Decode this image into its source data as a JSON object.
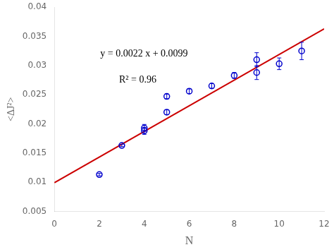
{
  "chart_data": {
    "type": "scatter",
    "xlabel": "N",
    "ylabel": "<ΔJ²>",
    "annotations": [
      "y = 0.0022 x + 0.0099",
      "R² = 0.96"
    ],
    "xlim": [
      0,
      12
    ],
    "xticks": [
      0,
      2,
      4,
      6,
      8,
      10,
      12
    ],
    "ylim": [
      0.005,
      0.04
    ],
    "yticks": [
      0.005,
      0.01,
      0.015,
      0.02,
      0.025,
      0.03,
      0.035,
      0.04
    ],
    "grid": false,
    "series": [
      {
        "type": "scatter",
        "marker": "circle",
        "color": "#0000CC",
        "x": [
          2,
          3,
          4,
          4,
          5,
          5,
          6,
          7,
          8,
          9,
          9,
          10,
          11
        ],
        "values": [
          0.0113,
          0.0163,
          0.0188,
          0.0193,
          0.022,
          0.0247,
          0.0256,
          0.0265,
          0.0283,
          0.0288,
          0.031,
          0.0303,
          0.0325
        ],
        "errors": [
          0.0002,
          0.0002,
          0.0006,
          0.0006,
          0.0004,
          0.0004,
          0.0004,
          0.0004,
          0.0005,
          0.0012,
          0.0012,
          0.001,
          0.0015
        ]
      },
      {
        "type": "line",
        "line_style": "solid",
        "color": "#CC0000",
        "x": [
          0,
          12
        ],
        "values": [
          0.0099,
          0.0363
        ]
      }
    ]
  }
}
